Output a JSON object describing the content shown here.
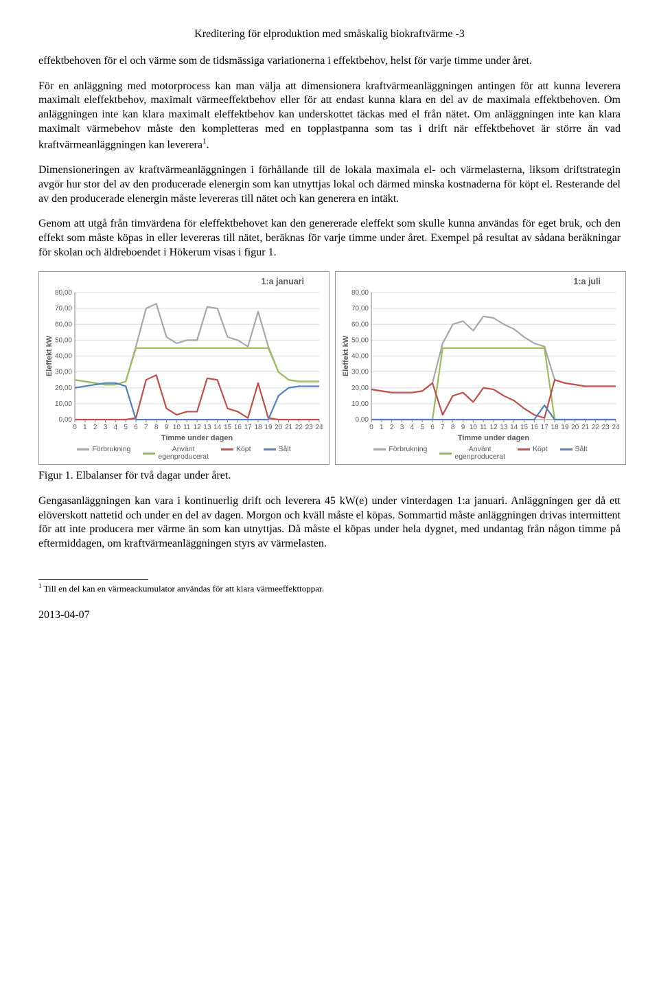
{
  "header": "Kreditering för elproduktion med småskalig biokraftvärme -3",
  "para1": "effektbehoven för el och värme som de tidsmässiga variationerna i effektbehov, helst för varje timme under året.",
  "para2": "För en anläggning med motorprocess kan man välja att dimensionera kraftvärmeanläggningen antingen för att kunna leverera maximalt eleffektbehov, maximalt värmeeffektbehov eller för att endast kunna klara en del av de maximala effektbehoven. Om anläggningen inte kan klara maximalt eleffektbehov kan underskottet täckas med el från nätet. Om anläggningen inte kan klara maximalt värmebehov måste den kompletteras med en topplastpanna som tas i drift när effektbehovet är större än vad kraftvärmeanläggningen kan leverera",
  "para2_super": "1",
  "para2_tail": ".",
  "para3": "Dimensioneringen av kraftvärmeanläggningen i förhållande till de lokala maximala el- och värmelasterna, liksom driftstrategin avgör hur stor del av den producerade elenergin som kan utnyttjas lokal och därmed minska kostnaderna för köpt el. Resterande del av den producerade elenergin måste levereras till nätet och kan generera en intäkt.",
  "para4": "Genom att utgå från timvärdena för eleffektbehovet kan den genererade eleffekt som skulle kunna  användas för eget bruk, och den effekt som måste köpas in eller levereras till nätet, beräknas för varje timme under året. Exempel på resultat av sådana beräkningar för skolan och äldreboendet i Hökerum visas i figur 1.",
  "figure_caption": "Figur  1. Elbalanser för två dagar under året.",
  "para5": "Gengasanläggningen kan vara i kontinuerlig drift och leverera 45 kW(e) under vinterdagen 1:a januari. Anläggningen ger då ett elöverskott nattetid  och under en del av dagen. Morgon och kväll måste el köpas. Sommartid måste anläggningen drivas intermittent för att inte producera mer värme än som kan utnyttjas. Då måste el köpas under hela dygnet, med undantag från någon timme på eftermiddagen,  om kraftvärmeanläggningen styrs av värmelasten.",
  "footnote_num": "1",
  "footnote_text": " Till en del kan en värmeackumulator användas för att klara värmeeffekttoppar.",
  "date": "2013-04-07",
  "chart_common": {
    "ylabel": "Eleffekt kW",
    "xlabel": "Timme under dagen",
    "ylim": [
      0,
      80
    ],
    "ytick_step": 10,
    "xlim": [
      0,
      24
    ],
    "xtick_step": 1,
    "grid_color": "#d9d9d9",
    "axis_color": "#808080",
    "colors": {
      "forbrukning": "#a6a6a6",
      "anvant": "#9bbb59",
      "kopt": "#c0504d",
      "salt": "#4f81bd"
    },
    "line_width": 2.2,
    "legend": [
      {
        "label": "Förbrukning",
        "key": "forbrukning"
      },
      {
        "label": "Använt\negenproducerat",
        "key": "anvant"
      },
      {
        "label": "Köpt",
        "key": "kopt"
      },
      {
        "label": "Sålt",
        "key": "salt"
      }
    ]
  },
  "chart_left": {
    "title": "1:a januari",
    "series": {
      "forbrukning": [
        25,
        24,
        23,
        22,
        22,
        24,
        46,
        70,
        73,
        52,
        48,
        50,
        50,
        71,
        70,
        52,
        50,
        46,
        68,
        46,
        30,
        25,
        24,
        24,
        24
      ],
      "anvant": [
        25,
        24,
        23,
        22,
        22,
        24,
        45,
        45,
        45,
        45,
        45,
        45,
        45,
        45,
        45,
        45,
        45,
        45,
        45,
        45,
        30,
        25,
        24,
        24,
        24
      ],
      "kopt": [
        0,
        0,
        0,
        0,
        0,
        0,
        1,
        25,
        28,
        7,
        3,
        5,
        5,
        26,
        25,
        7,
        5,
        1,
        23,
        1,
        0,
        0,
        0,
        0,
        0
      ],
      "salt": [
        20,
        21,
        22,
        23,
        23,
        21,
        0,
        0,
        0,
        0,
        0,
        0,
        0,
        0,
        0,
        0,
        0,
        0,
        0,
        0,
        15,
        20,
        21,
        21,
        21
      ]
    }
  },
  "chart_right": {
    "title": "1:a juli",
    "series": {
      "forbrukning": [
        19,
        18,
        17,
        17,
        17,
        18,
        23,
        48,
        60,
        62,
        56,
        65,
        64,
        60,
        57,
        52,
        48,
        46,
        25,
        23,
        22,
        21,
        21,
        21,
        21
      ],
      "anvant": [
        0,
        0,
        0,
        0,
        0,
        0,
        0,
        45,
        45,
        45,
        45,
        45,
        45,
        45,
        45,
        45,
        45,
        45,
        0,
        0,
        0,
        0,
        0,
        0,
        0
      ],
      "kopt": [
        19,
        18,
        17,
        17,
        17,
        18,
        23,
        3,
        15,
        17,
        11,
        20,
        19,
        15,
        12,
        7,
        3,
        1,
        25,
        23,
        22,
        21,
        21,
        21,
        21
      ],
      "salt": [
        0,
        0,
        0,
        0,
        0,
        0,
        0,
        0,
        0,
        0,
        0,
        0,
        0,
        0,
        0,
        0,
        0,
        9,
        0,
        0,
        0,
        0,
        0,
        0,
        0
      ]
    }
  }
}
